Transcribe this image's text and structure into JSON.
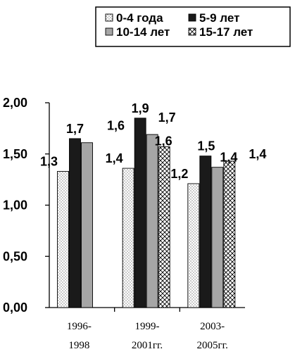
{
  "chart_data": {
    "type": "bar",
    "categories": [
      [
        "1996-",
        "1998"
      ],
      [
        "1999-",
        "2001гг."
      ],
      [
        "2003-",
        "2005гг."
      ]
    ],
    "series": [
      {
        "name": "0-4 года",
        "values": [
          1.33,
          1.36,
          1.21
        ],
        "labels": [
          "1,3",
          "1,4",
          "1,2"
        ],
        "fill": "dots"
      },
      {
        "name": "5-9 лет",
        "values": [
          1.65,
          1.85,
          1.48
        ],
        "labels": [
          "1,7",
          "1,9",
          "1,5"
        ],
        "fill": "black"
      },
      {
        "name": "10-14 лет",
        "values": [
          1.61,
          1.69,
          1.37
        ],
        "labels": [
          "1,6",
          "1,7",
          "1,4"
        ],
        "fill": "gray"
      },
      {
        "name": "15-17 лет",
        "values": [
          null,
          1.57,
          1.43
        ],
        "labels": [
          "",
          "1,6",
          "1,4"
        ],
        "fill": "crosshatch"
      }
    ],
    "yticks": [
      "0,00",
      "0,50",
      "1,00",
      "1,50",
      "2,00"
    ],
    "ylim": [
      0,
      2.0
    ],
    "colors": {
      "black": "#1a1a1a",
      "gray": "#a6a6a6",
      "white": "#ffffff"
    },
    "legend_position": "top"
  }
}
